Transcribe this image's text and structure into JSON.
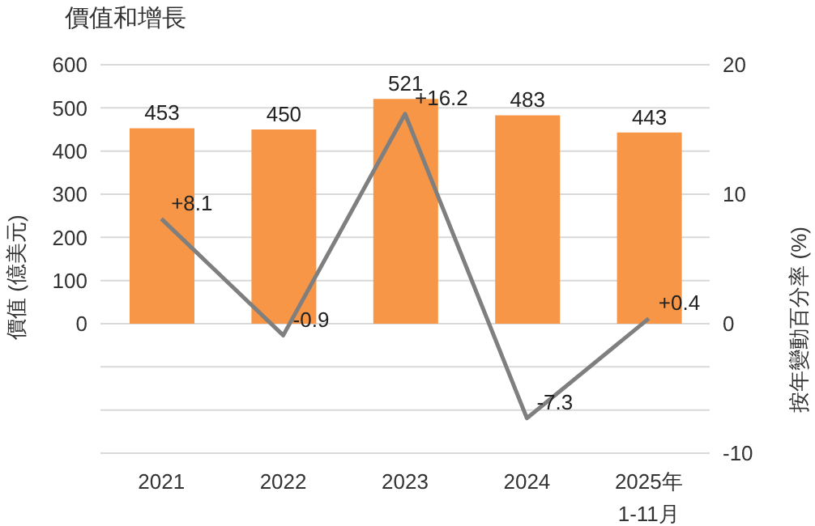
{
  "chart_data": {
    "type": "bar",
    "title": "價值和增長",
    "ylabel": "價值 (億美元)",
    "y2label": "按年變動百分率 (%)",
    "categories": [
      "2021",
      "2022",
      "2023",
      "2024",
      "2025年\n1-11月"
    ],
    "series": [
      {
        "color": "#f79646",
        "values": [
          453,
          450,
          521,
          483,
          443
        ]
      },
      {
        "type": "line",
        "axis": "y2",
        "color": "#7f7f7f",
        "values": [
          8.1,
          -0.9,
          16.2,
          -7.3,
          0.4
        ],
        "value_labels": [
          "+8.1",
          "-0.9",
          "+16.2",
          "-7.3",
          "+0.4"
        ],
        "marker": "none"
      }
    ],
    "data_labels": true,
    "ylim": [
      -300,
      600
    ],
    "yticks": [
      {
        "value": -300,
        "label": null
      },
      {
        "value": -200,
        "label": null
      },
      {
        "value": -100,
        "label": null
      },
      0,
      100,
      200,
      300,
      400,
      500,
      600
    ],
    "y2lim": [
      -10,
      20
    ],
    "y2ticks": [
      -10,
      0,
      10,
      20
    ],
    "grid": "y"
  }
}
